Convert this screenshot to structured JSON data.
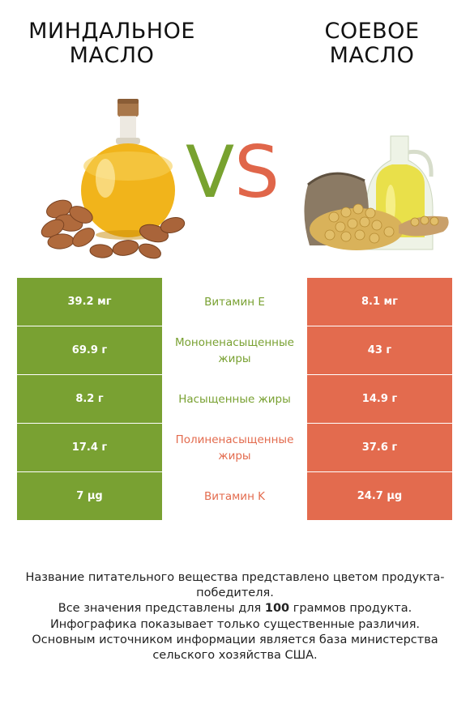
{
  "titles": {
    "left": "МИНДАЛЬНОЕ МАСЛО",
    "right": "СОЕВОЕ МАСЛО"
  },
  "vs": {
    "v": "V",
    "s": "S"
  },
  "colors": {
    "winner_left": "#79a132",
    "winner_right": "#e36b4e"
  },
  "rows": [
    {
      "left": "39.2 мг",
      "label": "Витамин E",
      "right": "8.1 мг",
      "winner": "left"
    },
    {
      "left": "69.9 г",
      "label": "Мононенасыщенные жиры",
      "right": "43 г",
      "winner": "left"
    },
    {
      "left": "8.2 г",
      "label": "Насыщенные жиры",
      "right": "14.9 г",
      "winner": "left"
    },
    {
      "left": "17.4 г",
      "label": "Полиненасыщенные жиры",
      "right": "37.6 г",
      "winner": "right"
    },
    {
      "left": "7 µg",
      "label": "Витамин K",
      "right": "24.7 µg",
      "winner": "right"
    }
  ],
  "footer": {
    "line1": "Название питательного вещества представлено цветом продукта-победителя.",
    "line2_pre": "Все значения представлены для ",
    "line2_bold": "100",
    "line2_post": " граммов продукта.",
    "line3": "Инфографика показывает только существенные различия.",
    "line4": "Основным источником информации является база министерства сельского хозяйства США."
  }
}
